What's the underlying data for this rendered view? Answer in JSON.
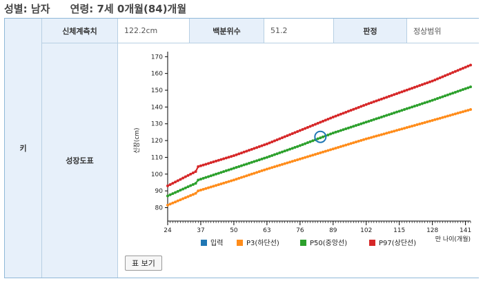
{
  "header": {
    "gender": "성별: 남자",
    "age": "연령: 7세 0개월(84)개월"
  },
  "table": {
    "row_label": "키",
    "measure_label": "신체계측치",
    "measure_value": "122.2cm",
    "percentile_label": "백분위수",
    "percentile_value": "51.2",
    "judgement_label": "판정",
    "judgement_value": "정상범위",
    "chart_label": "성장도표",
    "table_button": "표 보기"
  },
  "chart_data": {
    "type": "line",
    "xlabel": "만 나이(개월)",
    "ylabel": "신장(cm)",
    "xlim": [
      24,
      143
    ],
    "ylim": [
      72,
      173
    ],
    "x_ticks": [
      24,
      37,
      50,
      63,
      76,
      89,
      102,
      115,
      128,
      141
    ],
    "y_ticks": [
      80,
      90,
      100,
      110,
      120,
      130,
      140,
      150,
      160,
      170
    ],
    "input_point": {
      "x": 84,
      "y": 122.2
    },
    "series": [
      {
        "name": "입력",
        "color": "#1f77b4",
        "values": []
      },
      {
        "name": "P3(하단선)",
        "color": "#ff8c1a",
        "x": [
          24,
          35,
          36,
          50,
          63,
          76,
          89,
          102,
          115,
          128,
          143
        ],
        "values": [
          81.5,
          88.5,
          90.0,
          96.5,
          103.0,
          109.0,
          115.0,
          121.0,
          126.5,
          132.0,
          138.5
        ]
      },
      {
        "name": "P50(중앙선)",
        "color": "#2ca02c",
        "x": [
          24,
          35,
          36,
          50,
          63,
          76,
          89,
          102,
          115,
          128,
          143
        ],
        "values": [
          87.0,
          94.5,
          96.5,
          103.5,
          110.0,
          117.0,
          124.5,
          131.0,
          137.5,
          144.0,
          152.0
        ]
      },
      {
        "name": "P97(상단선)",
        "color": "#d62728",
        "x": [
          24,
          35,
          36,
          50,
          63,
          76,
          89,
          102,
          115,
          128,
          143
        ],
        "values": [
          93.0,
          101.5,
          104.5,
          111.0,
          118.0,
          126.0,
          134.0,
          141.5,
          148.5,
          155.5,
          165.0
        ]
      }
    ]
  }
}
